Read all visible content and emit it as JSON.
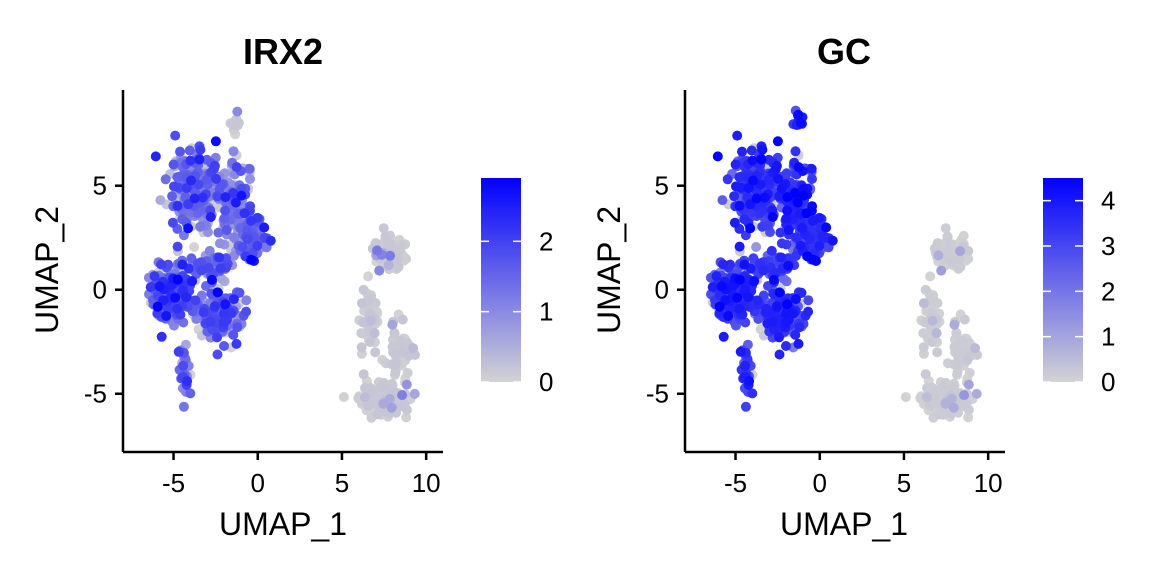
{
  "chart_data": [
    {
      "type": "scatter",
      "title": "IRX2",
      "xlabel": "UMAP_1",
      "ylabel": "UMAP_2",
      "xlim": [
        -8,
        11
      ],
      "ylim": [
        -7.8,
        9.6
      ],
      "xticks": [
        -5,
        0,
        5,
        10
      ],
      "yticks": [
        -5,
        0,
        5
      ],
      "colorbar": {
        "low_color": "#d3d3d3",
        "high_color": "#0000ff",
        "min": 0,
        "max": 2.9,
        "ticks": [
          0,
          1,
          2
        ]
      },
      "grid": false,
      "expression_profile": {
        "left_population_mean": 1.3,
        "right_population_mean": 0.2
      },
      "clusters": [
        {
          "name": "",
          "center": [
            -3.8,
            4.8
          ],
          "spread": [
            1.1,
            1.4
          ],
          "n": 230,
          "level": 1.3
        },
        {
          "name": "",
          "center": [
            -1.3,
            4.0
          ],
          "spread": [
            0.8,
            1.5
          ],
          "n": 150,
          "level": 1.0
        },
        {
          "name": "",
          "center": [
            -0.3,
            2.5
          ],
          "spread": [
            0.7,
            0.7
          ],
          "n": 90,
          "level": 1.2
        },
        {
          "name": "",
          "center": [
            -5.0,
            -0.2
          ],
          "spread": [
            0.9,
            1.0
          ],
          "n": 220,
          "level": 1.5
        },
        {
          "name": "",
          "center": [
            -2.2,
            -1.2
          ],
          "spread": [
            1.0,
            1.0
          ],
          "n": 150,
          "level": 1.4
        },
        {
          "name": "",
          "center": [
            -2.8,
            1.1
          ],
          "spread": [
            0.8,
            0.5
          ],
          "n": 50,
          "level": 1.2
        },
        {
          "name": "",
          "center": [
            -4.3,
            -3.8
          ],
          "spread": [
            0.3,
            1.0
          ],
          "n": 30,
          "level": 1.6
        },
        {
          "name": "",
          "center": [
            -1.3,
            8.0
          ],
          "spread": [
            0.25,
            0.5
          ],
          "n": 12,
          "level": 0.2
        },
        {
          "name": "",
          "center": [
            7.8,
            1.8
          ],
          "spread": [
            0.6,
            0.5
          ],
          "n": 90,
          "level": 0.15
        },
        {
          "name": "",
          "center": [
            6.6,
            -1.5
          ],
          "spread": [
            0.4,
            1.3
          ],
          "n": 50,
          "level": 0.3
        },
        {
          "name": "",
          "center": [
            7.5,
            -5.2
          ],
          "spread": [
            1.0,
            0.5
          ],
          "n": 160,
          "level": 0.15
        },
        {
          "name": "",
          "center": [
            8.5,
            -3.0
          ],
          "spread": [
            0.5,
            1.0
          ],
          "n": 45,
          "level": 0.2
        }
      ]
    },
    {
      "type": "scatter",
      "title": "GC",
      "xlabel": "UMAP_1",
      "ylabel": "UMAP_2",
      "xlim": [
        -8,
        11
      ],
      "ylim": [
        -7.8,
        9.6
      ],
      "xticks": [
        -5,
        0,
        5,
        10
      ],
      "yticks": [
        -5,
        0,
        5
      ],
      "colorbar": {
        "low_color": "#d3d3d3",
        "high_color": "#0000ff",
        "min": 0,
        "max": 4.5,
        "ticks": [
          0,
          1,
          2,
          3,
          4
        ]
      },
      "grid": false,
      "expression_profile": {
        "left_population_mean": 3.2,
        "right_population_mean": 0.3
      },
      "clusters": [
        {
          "name": "",
          "center": [
            -3.8,
            4.8
          ],
          "spread": [
            1.1,
            1.4
          ],
          "n": 230,
          "level": 3.3
        },
        {
          "name": "",
          "center": [
            -1.3,
            4.0
          ],
          "spread": [
            0.8,
            1.5
          ],
          "n": 150,
          "level": 3.4
        },
        {
          "name": "",
          "center": [
            -0.3,
            2.5
          ],
          "spread": [
            0.7,
            0.7
          ],
          "n": 90,
          "level": 3.0
        },
        {
          "name": "",
          "center": [
            -5.0,
            -0.2
          ],
          "spread": [
            0.9,
            1.0
          ],
          "n": 220,
          "level": 3.2
        },
        {
          "name": "",
          "center": [
            -2.2,
            -1.2
          ],
          "spread": [
            1.0,
            1.0
          ],
          "n": 150,
          "level": 3.3
        },
        {
          "name": "",
          "center": [
            -2.8,
            1.1
          ],
          "spread": [
            0.8,
            0.5
          ],
          "n": 50,
          "level": 2.8
        },
        {
          "name": "",
          "center": [
            -4.3,
            -3.8
          ],
          "spread": [
            0.3,
            1.0
          ],
          "n": 30,
          "level": 3.5
        },
        {
          "name": "",
          "center": [
            -1.3,
            8.0
          ],
          "spread": [
            0.25,
            0.5
          ],
          "n": 12,
          "level": 3.5
        },
        {
          "name": "",
          "center": [
            7.8,
            1.8
          ],
          "spread": [
            0.6,
            0.5
          ],
          "n": 90,
          "level": 0.25
        },
        {
          "name": "",
          "center": [
            6.6,
            -1.5
          ],
          "spread": [
            0.4,
            1.3
          ],
          "n": 50,
          "level": 0.6
        },
        {
          "name": "",
          "center": [
            7.5,
            -5.2
          ],
          "spread": [
            1.0,
            0.5
          ],
          "n": 160,
          "level": 0.3
        },
        {
          "name": "",
          "center": [
            8.5,
            -3.0
          ],
          "spread": [
            0.5,
            1.0
          ],
          "n": 45,
          "level": 0.4
        }
      ]
    }
  ]
}
